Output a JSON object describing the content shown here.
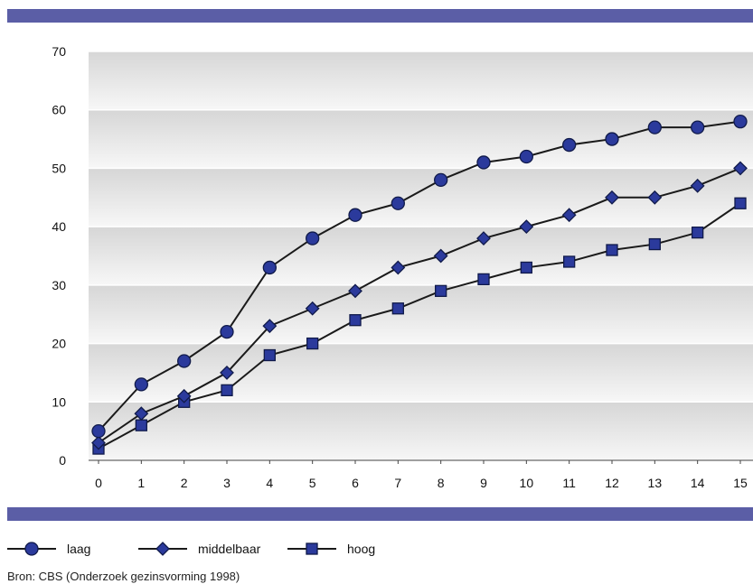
{
  "colors": {
    "band": "#5b5ea6",
    "marker_fill": "#2b3a9c",
    "marker_stroke": "#101a4a",
    "line": "#1a1a1a",
    "plot_dark": "#d6d6d6",
    "plot_light": "#f7f7f7",
    "gridline": "#ffffff"
  },
  "chart_data": {
    "type": "line",
    "x": [
      0,
      1,
      2,
      3,
      4,
      5,
      6,
      7,
      8,
      9,
      10,
      11,
      12,
      13,
      14,
      15
    ],
    "xlim": [
      0,
      15
    ],
    "ylim": [
      0,
      70
    ],
    "yticks": [
      0,
      10,
      20,
      30,
      40,
      50,
      60,
      70
    ],
    "grid": true,
    "legend_placement": "bottom",
    "series": [
      {
        "name": "laag",
        "marker": "circle",
        "values": [
          5,
          13,
          17,
          22,
          33,
          38,
          42,
          44,
          48,
          51,
          52,
          54,
          55,
          57,
          57,
          58
        ]
      },
      {
        "name": "middelbaar",
        "marker": "diamond",
        "values": [
          3,
          8,
          11,
          15,
          23,
          26,
          29,
          33,
          35,
          38,
          40,
          42,
          45,
          45,
          47,
          50
        ]
      },
      {
        "name": "hoog",
        "marker": "square",
        "values": [
          2,
          6,
          10,
          12,
          18,
          20,
          24,
          26,
          29,
          31,
          33,
          34,
          36,
          37,
          39,
          44
        ]
      }
    ]
  },
  "source_note": "Bron: CBS (Onderzoek gezinsvorming 1998)"
}
